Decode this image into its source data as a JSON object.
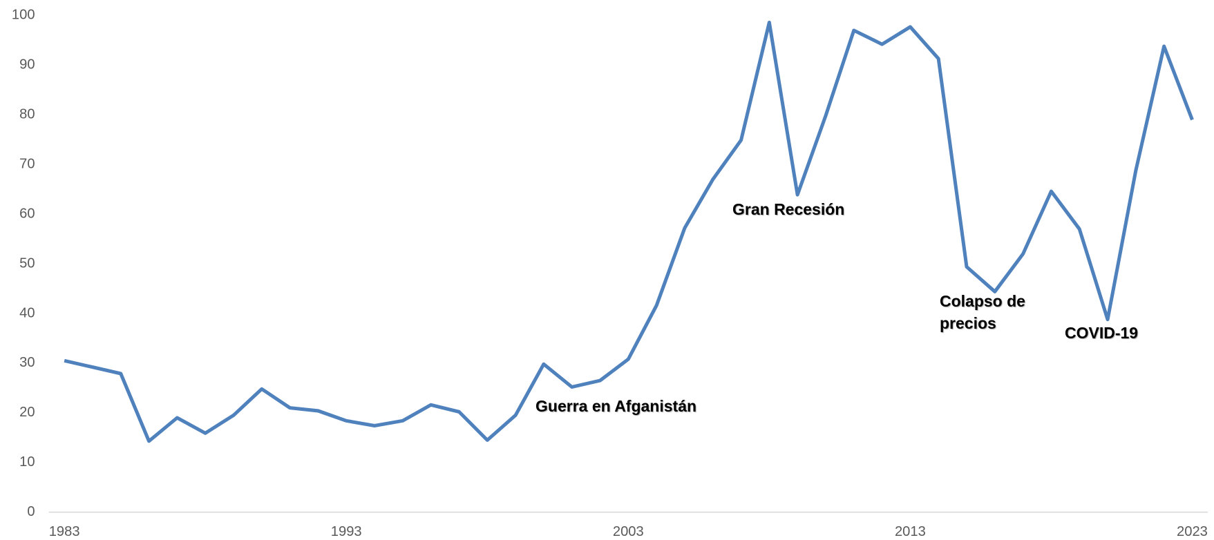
{
  "chart_data": {
    "type": "line",
    "x": [
      1983,
      1984,
      1985,
      1986,
      1987,
      1988,
      1989,
      1990,
      1991,
      1992,
      1993,
      1994,
      1995,
      1996,
      1997,
      1998,
      1999,
      2000,
      2001,
      2002,
      2003,
      2004,
      2005,
      2006,
      2007,
      2008,
      2009,
      2010,
      2011,
      2012,
      2013,
      2014,
      2015,
      2016,
      2017,
      2018,
      2019,
      2020,
      2021,
      2022,
      2023
    ],
    "series": [
      {
        "color": "#4f81bd",
        "values": [
          30.5,
          29.2,
          27.9,
          14.3,
          19.0,
          15.9,
          19.5,
          24.8,
          21.0,
          20.4,
          18.4,
          17.4,
          18.4,
          21.6,
          20.2,
          14.5,
          19.5,
          29.8,
          25.2,
          26.5,
          30.8,
          41.6,
          57.2,
          67.0,
          74.9,
          98.6,
          63.9,
          79.8,
          97.0,
          94.2,
          97.7,
          91.3,
          49.4,
          44.4,
          52.0,
          64.6,
          57.0,
          38.8,
          68.8,
          93.8,
          79.0
        ]
      }
    ],
    "xlim": [
      1983,
      2023
    ],
    "xticks": [
      1983,
      1993,
      2003,
      2013,
      2023
    ],
    "ylim": [
      0,
      100
    ],
    "yticks": [
      0,
      10,
      20,
      30,
      40,
      50,
      60,
      70,
      80,
      90,
      100
    ],
    "grid": false,
    "annotations": [
      "Guerra en Afganistán",
      "Gran Recesión",
      "Colapso de precios",
      "COVID-19"
    ]
  }
}
